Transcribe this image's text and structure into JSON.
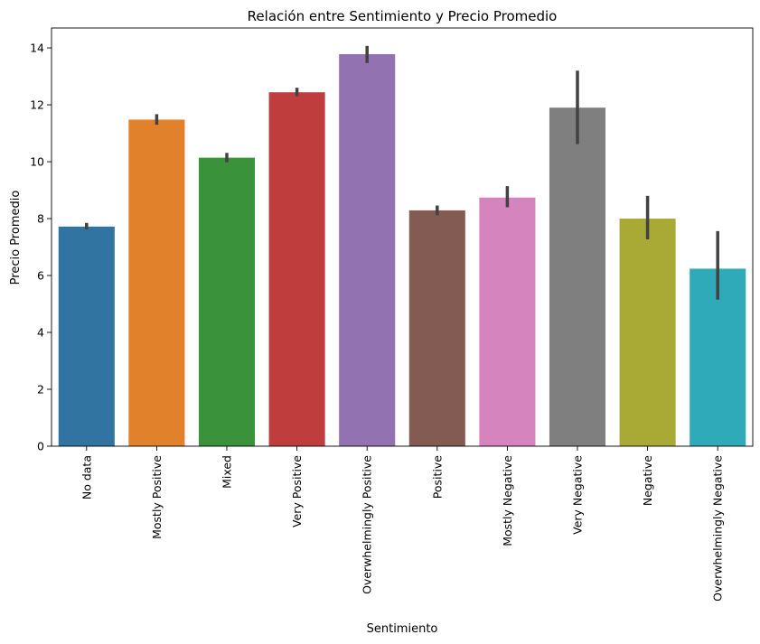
{
  "chart_data": {
    "type": "bar",
    "title": "Relación entre Sentimiento y Precio Promedio",
    "xlabel": "Sentimiento",
    "ylabel": "Precio Promedio",
    "ylim": [
      0,
      14.7
    ],
    "yticks": [
      0,
      2,
      4,
      6,
      8,
      10,
      12,
      14
    ],
    "grid": false,
    "categories": [
      "No data",
      "Mostly Positive",
      "Mixed",
      "Very Positive",
      "Overwhelmingly Positive",
      "Positive",
      "Mostly Negative",
      "Very Negative",
      "Negative",
      "Overwhelmingly Negative"
    ],
    "values": [
      7.72,
      11.48,
      10.14,
      12.44,
      13.78,
      8.29,
      8.74,
      11.9,
      8.0,
      6.24
    ],
    "error_low": [
      7.62,
      11.3,
      9.98,
      12.3,
      13.47,
      8.12,
      8.4,
      10.62,
      7.27,
      5.15
    ],
    "error_high": [
      7.85,
      11.67,
      10.31,
      12.6,
      14.07,
      8.46,
      9.14,
      13.2,
      8.8,
      7.56
    ],
    "colors": [
      "#3274a1",
      "#e1812c",
      "#3a923a",
      "#c03d3e",
      "#9372b2",
      "#845b53",
      "#d684bd",
      "#7f7f7f",
      "#a9aa35",
      "#2eaab8"
    ],
    "error_color": "#424242"
  }
}
